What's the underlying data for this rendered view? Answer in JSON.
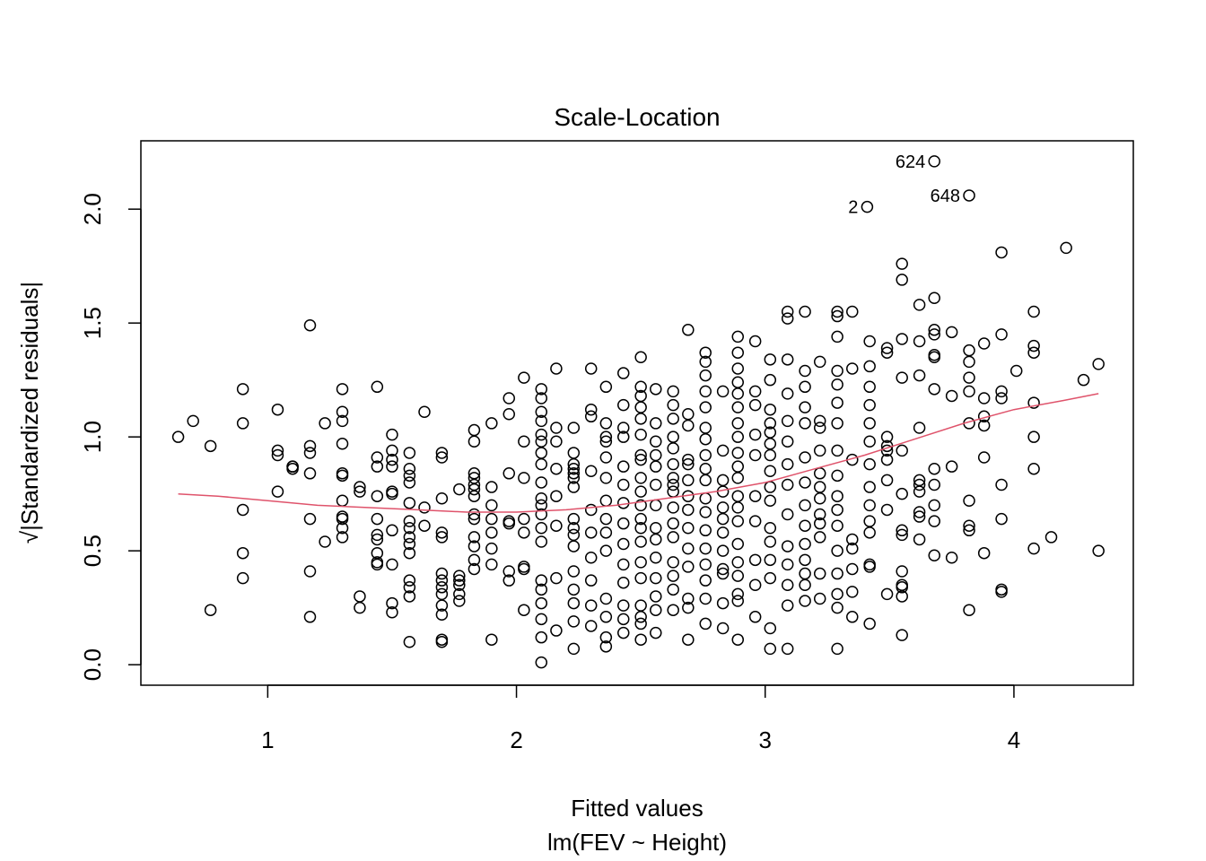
{
  "chart_data": {
    "type": "scatter",
    "title": "Scale-Location",
    "xlabel": "Fitted values",
    "xlabel_sub": "lm(FEV ~ Height)",
    "ylabel": "√|Standardized residuals|",
    "xlim": [
      0.49,
      4.48
    ],
    "ylim": [
      -0.09,
      2.3
    ],
    "x_ticks": [
      1,
      2,
      3,
      4
    ],
    "y_ticks": [
      0.0,
      0.5,
      1.0,
      1.5,
      2.0
    ],
    "x_tick_labels": [
      "1",
      "2",
      "3",
      "4"
    ],
    "y_tick_labels": [
      "0.0",
      "0.5",
      "1.0",
      "1.5",
      "2.0"
    ],
    "grid": false,
    "colors": {
      "points": "#000000",
      "smoother": "#DF536B"
    },
    "points": {
      "x": [
        0.64,
        0.7,
        0.77,
        0.77,
        0.9,
        0.9,
        0.9,
        0.9,
        0.9,
        1.04,
        1.04,
        1.04,
        1.04,
        1.1,
        1.1,
        1.1,
        1.17,
        1.17,
        1.17,
        1.17,
        1.17,
        1.17,
        1.17,
        1.23,
        1.23,
        1.3,
        1.3,
        1.3,
        1.3,
        1.3,
        1.3,
        1.3,
        1.3,
        1.3,
        1.3,
        1.3,
        1.37,
        1.37,
        1.37,
        1.37,
        1.44,
        1.44,
        1.44,
        1.44,
        1.44,
        1.44,
        1.44,
        1.44,
        1.44,
        1.44,
        1.5,
        1.5,
        1.5,
        1.5,
        1.5,
        1.5,
        1.5,
        1.5,
        1.5,
        1.5,
        1.57,
        1.57,
        1.57,
        1.57,
        1.57,
        1.57,
        1.57,
        1.57,
        1.57,
        1.57,
        1.57,
        1.57,
        1.57,
        1.57,
        1.63,
        1.63,
        1.63,
        1.7,
        1.7,
        1.7,
        1.7,
        1.7,
        1.7,
        1.7,
        1.7,
        1.7,
        1.7,
        1.7,
        1.7,
        1.7,
        1.77,
        1.77,
        1.77,
        1.77,
        1.77,
        1.77,
        1.83,
        1.83,
        1.83,
        1.83,
        1.83,
        1.83,
        1.83,
        1.83,
        1.83,
        1.83,
        1.83,
        1.83,
        1.83,
        1.9,
        1.9,
        1.9,
        1.9,
        1.9,
        1.9,
        1.9,
        1.9,
        1.97,
        1.97,
        1.97,
        1.97,
        1.97,
        1.97,
        1.97,
        2.03,
        2.03,
        2.03,
        2.03,
        2.03,
        2.03,
        2.03,
        2.03,
        2.1,
        2.1,
        2.1,
        2.1,
        2.1,
        2.1,
        2.1,
        2.1,
        2.1,
        2.1,
        2.1,
        2.1,
        2.1,
        2.1,
        2.1,
        2.1,
        2.1,
        2.1,
        2.1,
        2.1,
        2.16,
        2.16,
        2.16,
        2.16,
        2.16,
        2.16,
        2.16,
        2.16,
        2.23,
        2.23,
        2.23,
        2.23,
        2.23,
        2.23,
        2.23,
        2.23,
        2.23,
        2.23,
        2.23,
        2.23,
        2.23,
        2.23,
        2.23,
        2.23,
        2.3,
        2.3,
        2.3,
        2.3,
        2.3,
        2.3,
        2.3,
        2.3,
        2.3,
        2.3,
        2.36,
        2.36,
        2.36,
        2.36,
        2.36,
        2.36,
        2.36,
        2.36,
        2.36,
        2.36,
        2.36,
        2.36,
        2.36,
        2.36,
        2.43,
        2.43,
        2.43,
        2.43,
        2.43,
        2.43,
        2.43,
        2.43,
        2.43,
        2.43,
        2.43,
        2.43,
        2.43,
        2.43,
        2.5,
        2.5,
        2.5,
        2.5,
        2.5,
        2.5,
        2.5,
        2.5,
        2.5,
        2.5,
        2.5,
        2.5,
        2.5,
        2.5,
        2.5,
        2.5,
        2.5,
        2.5,
        2.5,
        2.5,
        2.56,
        2.56,
        2.56,
        2.56,
        2.56,
        2.56,
        2.56,
        2.56,
        2.56,
        2.56,
        2.56,
        2.56,
        2.56,
        2.56,
        2.63,
        2.63,
        2.63,
        2.63,
        2.63,
        2.63,
        2.63,
        2.63,
        2.63,
        2.63,
        2.63,
        2.63,
        2.63,
        2.63,
        2.63,
        2.63,
        2.69,
        2.69,
        2.69,
        2.69,
        2.69,
        2.69,
        2.69,
        2.69,
        2.69,
        2.69,
        2.69,
        2.69,
        2.69,
        2.69,
        2.76,
        2.76,
        2.76,
        2.76,
        2.76,
        2.76,
        2.76,
        2.76,
        2.76,
        2.76,
        2.76,
        2.76,
        2.76,
        2.76,
        2.76,
        2.76,
        2.76,
        2.76,
        2.83,
        2.83,
        2.83,
        2.83,
        2.83,
        2.83,
        2.83,
        2.83,
        2.83,
        2.83,
        2.83,
        2.83,
        2.89,
        2.89,
        2.89,
        2.89,
        2.89,
        2.89,
        2.89,
        2.89,
        2.89,
        2.89,
        2.89,
        2.89,
        2.89,
        2.89,
        2.89,
        2.89,
        2.89,
        2.89,
        2.89,
        2.89,
        2.96,
        2.96,
        2.96,
        2.96,
        2.96,
        2.96,
        2.96,
        2.96,
        2.96,
        2.96,
        3.02,
        3.02,
        3.02,
        3.02,
        3.02,
        3.02,
        3.02,
        3.02,
        3.02,
        3.02,
        3.02,
        3.02,
        3.02,
        3.02,
        3.02,
        3.02,
        3.09,
        3.09,
        3.09,
        3.09,
        3.09,
        3.09,
        3.09,
        3.09,
        3.09,
        3.09,
        3.09,
        3.09,
        3.09,
        3.09,
        3.16,
        3.16,
        3.16,
        3.16,
        3.16,
        3.16,
        3.16,
        3.16,
        3.16,
        3.16,
        3.16,
        3.16,
        3.16,
        3.16,
        3.22,
        3.22,
        3.22,
        3.22,
        3.22,
        3.22,
        3.22,
        3.22,
        3.22,
        3.22,
        3.22,
        3.22,
        3.29,
        3.29,
        3.29,
        3.29,
        3.29,
        3.29,
        3.29,
        3.29,
        3.29,
        3.29,
        3.29,
        3.29,
        3.29,
        3.29,
        3.29,
        3.29,
        3.29,
        3.35,
        3.35,
        3.35,
        3.35,
        3.35,
        3.35,
        3.35,
        3.35,
        3.42,
        3.42,
        3.42,
        3.42,
        3.42,
        3.42,
        3.42,
        3.42,
        3.42,
        3.42,
        3.42,
        3.42,
        3.42,
        3.42,
        3.49,
        3.49,
        3.49,
        3.49,
        3.49,
        3.49,
        3.49,
        3.49,
        3.49,
        3.55,
        3.55,
        3.55,
        3.55,
        3.55,
        3.55,
        3.55,
        3.55,
        3.55,
        3.55,
        3.55,
        3.55,
        3.55,
        3.62,
        3.62,
        3.62,
        3.62,
        3.62,
        3.62,
        3.62,
        3.62,
        3.62,
        3.62,
        3.68,
        3.68,
        3.68,
        3.68,
        3.68,
        3.68,
        3.68,
        3.68,
        3.68,
        3.68,
        3.68,
        3.75,
        3.75,
        3.75,
        3.75,
        3.82,
        3.82,
        3.82,
        3.82,
        3.82,
        3.82,
        3.82,
        3.82,
        3.82,
        3.88,
        3.88,
        3.88,
        3.88,
        3.88,
        3.88,
        3.95,
        3.95,
        3.95,
        3.95,
        3.95,
        3.95,
        3.95,
        3.95,
        4.01,
        4.08,
        4.08,
        4.08,
        4.08,
        4.08,
        4.08,
        4.08,
        4.15,
        4.21,
        4.28,
        4.34,
        4.34,
        3.41,
        3.68,
        3.82
      ],
      "y": [
        1.0,
        1.07,
        0.96,
        0.24,
        1.21,
        1.06,
        0.68,
        0.49,
        0.38,
        1.12,
        0.94,
        0.92,
        0.76,
        0.87,
        0.86,
        0.87,
        1.49,
        0.96,
        0.93,
        0.84,
        0.64,
        0.41,
        0.21,
        1.06,
        0.54,
        1.21,
        1.11,
        1.07,
        0.97,
        0.84,
        0.83,
        0.72,
        0.65,
        0.6,
        0.56,
        0.64,
        0.78,
        0.76,
        0.3,
        0.25,
        1.22,
        0.91,
        0.87,
        0.74,
        0.64,
        0.57,
        0.55,
        0.49,
        0.45,
        0.44,
        1.01,
        0.94,
        0.9,
        0.87,
        0.76,
        0.75,
        0.59,
        0.44,
        0.27,
        0.23,
        0.93,
        0.86,
        0.83,
        0.8,
        0.71,
        0.63,
        0.6,
        0.56,
        0.53,
        0.49,
        0.37,
        0.34,
        0.3,
        0.1,
        1.11,
        0.69,
        0.61,
        0.93,
        0.91,
        0.73,
        0.58,
        0.56,
        0.4,
        0.37,
        0.34,
        0.31,
        0.26,
        0.22,
        0.11,
        0.1,
        0.77,
        0.39,
        0.37,
        0.35,
        0.31,
        0.28,
        1.03,
        0.98,
        0.84,
        0.82,
        0.79,
        0.77,
        0.74,
        0.66,
        0.64,
        0.56,
        0.52,
        0.46,
        0.42,
        1.06,
        0.78,
        0.7,
        0.64,
        0.58,
        0.51,
        0.44,
        0.11,
        1.17,
        1.1,
        0.84,
        0.63,
        0.62,
        0.41,
        0.37,
        1.26,
        0.98,
        0.82,
        0.64,
        0.58,
        0.43,
        0.42,
        0.24,
        1.21,
        1.17,
        1.11,
        1.07,
        1.01,
        0.98,
        0.93,
        0.88,
        0.8,
        0.73,
        0.7,
        0.66,
        0.6,
        0.54,
        0.37,
        0.33,
        0.27,
        0.2,
        0.12,
        0.01,
        1.3,
        1.04,
        0.98,
        0.86,
        0.74,
        0.61,
        0.38,
        0.15,
        1.04,
        0.93,
        0.88,
        0.86,
        0.84,
        0.82,
        0.78,
        0.64,
        0.6,
        0.57,
        0.52,
        0.41,
        0.33,
        0.27,
        0.19,
        0.07,
        1.3,
        1.12,
        1.09,
        0.85,
        0.68,
        0.58,
        0.47,
        0.37,
        0.26,
        0.17,
        1.22,
        1.06,
        1.0,
        0.98,
        0.91,
        0.82,
        0.72,
        0.64,
        0.58,
        0.5,
        0.29,
        0.21,
        0.12,
        0.08,
        1.28,
        1.14,
        1.04,
        1.0,
        0.87,
        0.79,
        0.71,
        0.62,
        0.53,
        0.44,
        0.36,
        0.26,
        0.2,
        0.14,
        1.35,
        1.22,
        1.18,
        1.13,
        1.08,
        1.01,
        0.92,
        0.9,
        0.82,
        0.76,
        0.7,
        0.64,
        0.6,
        0.54,
        0.45,
        0.38,
        0.26,
        0.21,
        0.18,
        0.11,
        1.21,
        1.06,
        0.98,
        0.92,
        0.87,
        0.79,
        0.7,
        0.6,
        0.55,
        0.47,
        0.38,
        0.3,
        0.24,
        0.14,
        1.2,
        1.14,
        1.08,
        1.0,
        0.95,
        0.88,
        0.82,
        0.79,
        0.76,
        0.69,
        0.62,
        0.56,
        0.45,
        0.39,
        0.33,
        0.24,
        1.47,
        1.1,
        1.05,
        0.9,
        0.88,
        0.81,
        0.74,
        0.68,
        0.6,
        0.51,
        0.43,
        0.29,
        0.25,
        0.11,
        1.37,
        1.33,
        1.27,
        1.2,
        1.13,
        1.04,
        0.99,
        0.92,
        0.86,
        0.81,
        0.73,
        0.67,
        0.59,
        0.51,
        0.44,
        0.37,
        0.29,
        0.18,
        1.2,
        0.94,
        0.81,
        0.76,
        0.69,
        0.64,
        0.58,
        0.5,
        0.42,
        0.4,
        0.27,
        0.16,
        1.44,
        1.37,
        1.3,
        1.24,
        1.19,
        1.13,
        1.06,
        1.0,
        0.93,
        0.87,
        0.82,
        0.74,
        0.69,
        0.63,
        0.53,
        0.45,
        0.39,
        0.31,
        0.28,
        0.11,
        1.42,
        1.2,
        1.14,
        1.01,
        0.92,
        0.74,
        0.63,
        0.46,
        0.35,
        0.21,
        1.34,
        1.25,
        1.12,
        1.06,
        1.02,
        0.97,
        0.92,
        0.85,
        0.78,
        0.72,
        0.6,
        0.54,
        0.46,
        0.38,
        0.16,
        0.07,
        1.55,
        1.52,
        1.34,
        1.19,
        1.07,
        0.98,
        0.88,
        0.79,
        0.66,
        0.52,
        0.44,
        0.35,
        0.26,
        0.07,
        1.55,
        1.29,
        1.22,
        1.13,
        1.06,
        0.91,
        0.8,
        0.7,
        0.61,
        0.53,
        0.46,
        0.4,
        0.35,
        0.28,
        1.33,
        1.07,
        1.04,
        0.94,
        0.84,
        0.78,
        0.73,
        0.66,
        0.62,
        0.56,
        0.4,
        0.29,
        1.55,
        1.53,
        1.44,
        1.29,
        1.23,
        1.15,
        1.06,
        0.94,
        0.83,
        0.74,
        0.68,
        0.61,
        0.5,
        0.4,
        0.31,
        0.25,
        0.07,
        1.55,
        1.3,
        0.9,
        0.55,
        0.51,
        0.42,
        0.32,
        0.21,
        1.42,
        1.31,
        1.22,
        1.14,
        1.06,
        0.98,
        0.88,
        0.78,
        0.7,
        0.63,
        0.58,
        0.44,
        0.43,
        0.18,
        1.39,
        1.37,
        1.0,
        0.96,
        0.94,
        0.9,
        0.81,
        0.68,
        0.31,
        1.76,
        1.69,
        1.43,
        1.26,
        0.94,
        0.75,
        0.59,
        0.57,
        0.41,
        0.35,
        0.34,
        0.3,
        0.13,
        1.58,
        1.42,
        1.27,
        1.04,
        0.81,
        0.79,
        0.76,
        0.67,
        0.65,
        0.55,
        1.61,
        1.47,
        1.45,
        1.36,
        1.35,
        1.21,
        0.86,
        0.79,
        0.7,
        0.63,
        0.48,
        1.46,
        1.18,
        0.87,
        0.47,
        1.38,
        1.33,
        1.26,
        1.2,
        1.06,
        0.72,
        0.61,
        0.59,
        0.24,
        1.41,
        1.17,
        1.09,
        1.05,
        0.91,
        0.49,
        1.81,
        1.45,
        1.2,
        1.17,
        0.79,
        0.64,
        0.33,
        0.32,
        1.29,
        1.55,
        1.4,
        1.37,
        1.15,
        1.0,
        0.86,
        0.51,
        0.56,
        1.83,
        1.25,
        1.32,
        0.5,
        2.01,
        2.21,
        2.06
      ]
    },
    "labeled_points": [
      {
        "label": "624",
        "x": 3.68,
        "y": 2.21
      },
      {
        "label": "2",
        "x": 3.41,
        "y": 2.01
      },
      {
        "label": "648",
        "x": 3.82,
        "y": 2.06
      }
    ],
    "smoother": {
      "x": [
        0.64,
        0.8,
        1.0,
        1.2,
        1.4,
        1.6,
        1.8,
        2.0,
        2.2,
        2.4,
        2.6,
        2.8,
        3.0,
        3.2,
        3.4,
        3.6,
        3.8,
        4.0,
        4.2,
        4.34
      ],
      "y": [
        0.75,
        0.74,
        0.72,
        0.7,
        0.69,
        0.68,
        0.67,
        0.67,
        0.68,
        0.7,
        0.73,
        0.76,
        0.8,
        0.86,
        0.92,
        0.99,
        1.06,
        1.12,
        1.16,
        1.19
      ]
    }
  }
}
